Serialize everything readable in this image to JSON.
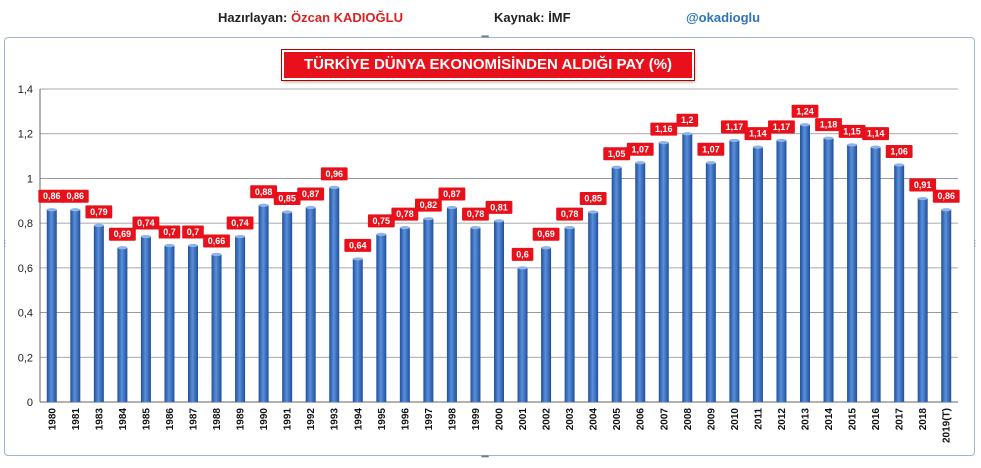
{
  "header": {
    "author_label": "Hazırlayan:",
    "author_name": "Özcan KADIOĞLU",
    "source": "Kaynak: İMF",
    "handle": "@okadioglu"
  },
  "chart_data": {
    "type": "bar",
    "title": "TÜRKİYE DÜNYA EKONOMİSİNDEN ALDIĞI PAY (%)",
    "xlabel": "",
    "ylabel": "",
    "ylim": [
      0,
      1.4
    ],
    "yticks": [
      "0",
      "0,2",
      "0,4",
      "0,6",
      "0,8",
      "1",
      "1,2",
      "1,4"
    ],
    "grid": true,
    "legend": "none",
    "colors": {
      "bar": "#3a6fc4",
      "bar_dark": "#1f4f9a",
      "label_bg": "#e8101a"
    },
    "categories": [
      "1980",
      "1981",
      "1983",
      "1984",
      "1985",
      "1986",
      "1987",
      "1988",
      "1989",
      "1990",
      "1991",
      "1992",
      "1993",
      "1994",
      "1995",
      "1996",
      "1997",
      "1998",
      "1999",
      "2000",
      "2001",
      "2002",
      "2003",
      "2004",
      "2005",
      "2006",
      "2007",
      "2008",
      "2009",
      "2010",
      "2011",
      "2012",
      "2013",
      "2014",
      "2015",
      "2016",
      "2017",
      "2018",
      "2019(T)"
    ],
    "values": [
      0.86,
      0.86,
      0.79,
      0.69,
      0.74,
      0.7,
      0.7,
      0.66,
      0.74,
      0.88,
      0.85,
      0.87,
      0.96,
      0.64,
      0.75,
      0.78,
      0.82,
      0.87,
      0.78,
      0.81,
      0.6,
      0.69,
      0.78,
      0.85,
      1.05,
      1.07,
      1.16,
      1.2,
      1.07,
      1.17,
      1.14,
      1.17,
      1.24,
      1.18,
      1.15,
      1.14,
      1.06,
      0.91,
      0.86
    ],
    "labels": [
      "0,86",
      "0,86",
      "0,79",
      "0,69",
      "0,74",
      "0,7",
      "0,7",
      "0,66",
      "0,74",
      "0,88",
      "0,85",
      "0,87",
      "0,96",
      "0,64",
      "0,75",
      "0,78",
      "0,82",
      "0,87",
      "0,78",
      "0,81",
      "0,6",
      "0,69",
      "0,78",
      "0,85",
      "1,05",
      "1,07",
      "1,16",
      "1,2",
      "1,07",
      "1,17",
      "1,14",
      "1,17",
      "1,24",
      "1,18",
      "1,15",
      "1,14",
      "1,06",
      "0,91",
      "0,86"
    ]
  }
}
